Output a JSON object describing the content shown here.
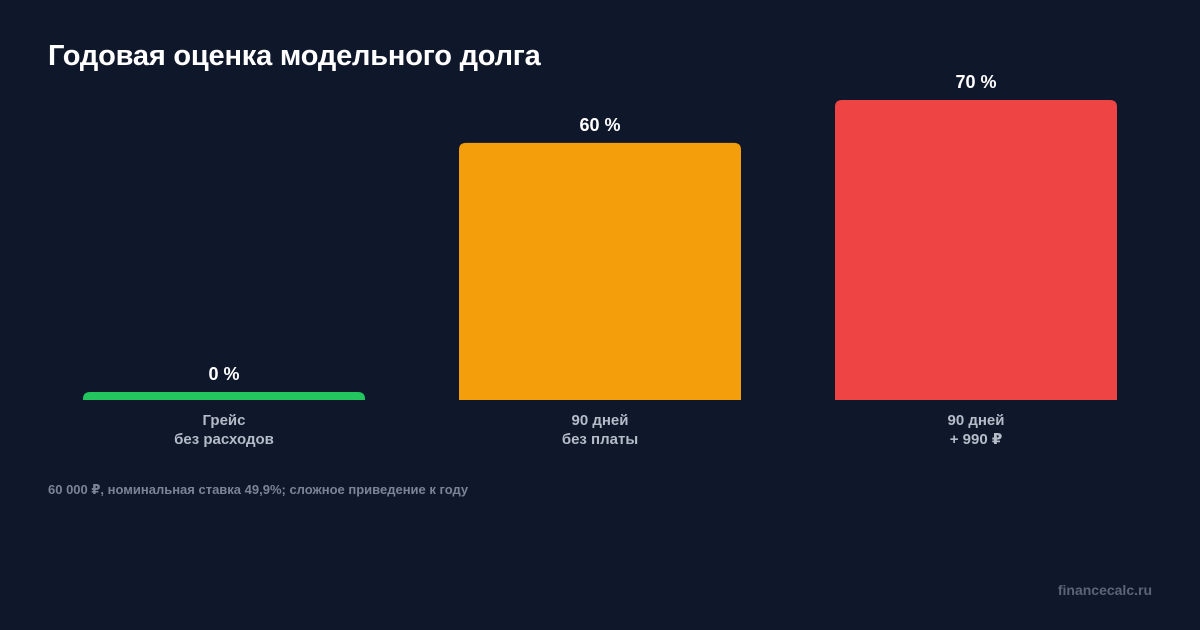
{
  "chart_data": {
    "type": "bar",
    "title": "Годовая оценка модельного долга",
    "categories": [
      [
        "Грейс",
        "без расходов"
      ],
      [
        "90 дней",
        "без платы"
      ],
      [
        "90 дней",
        "+ 990 ₽"
      ]
    ],
    "values": [
      0,
      60,
      70
    ],
    "value_labels": [
      "0 %",
      "60 %",
      "70 %"
    ],
    "unit": "%",
    "ylim": [
      0,
      70
    ],
    "grid": false,
    "legend": "none",
    "colors": [
      "#22c55e",
      "#f59e0b",
      "#ef4444"
    ]
  },
  "footnote": "60 000 ₽, номинальная ставка 49,9%; сложное приведение к году",
  "brand": "financecalc.ru"
}
